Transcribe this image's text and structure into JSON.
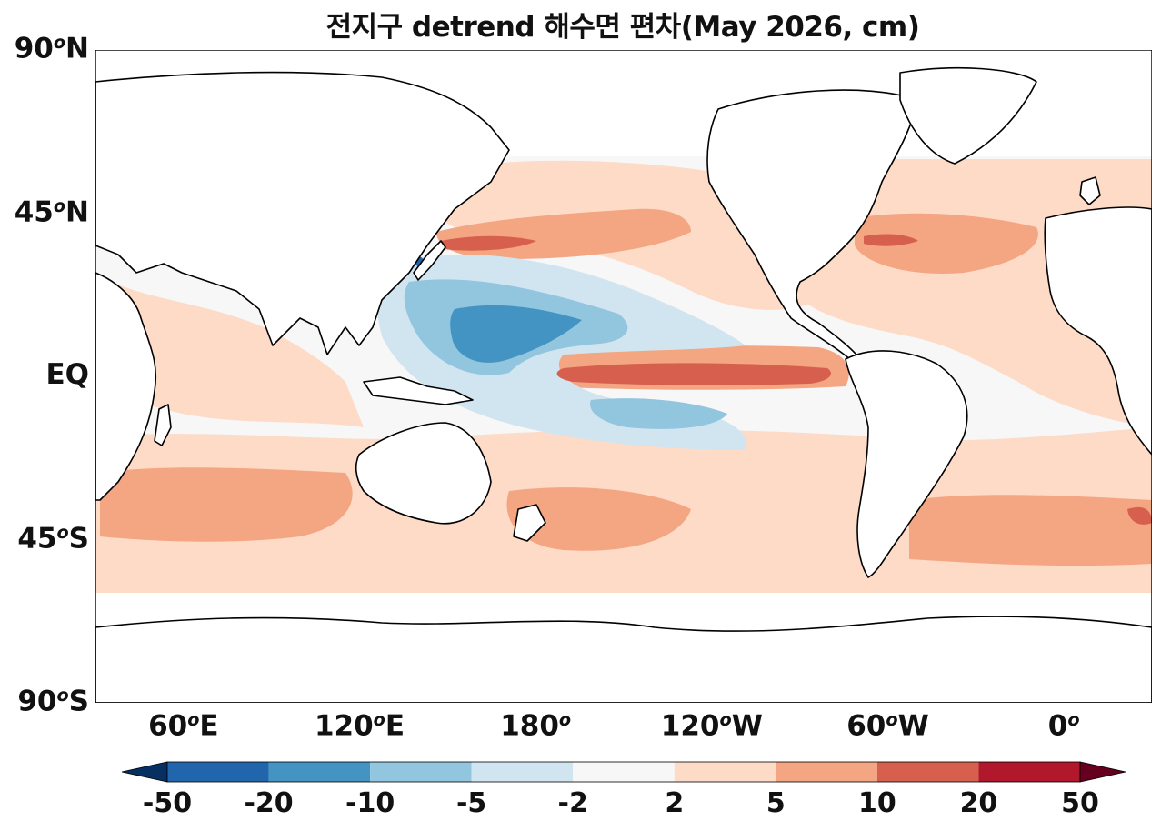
{
  "title": "전지구 detrend 해수면 편차(May 2026, cm)",
  "y_ticks": [
    {
      "deg": "90",
      "suffix": "N",
      "lat": 90
    },
    {
      "deg": "45",
      "suffix": "N",
      "lat": 45
    },
    {
      "deg": "",
      "suffix": "EQ",
      "lat": 0
    },
    {
      "deg": "45",
      "suffix": "S",
      "lat": -45
    },
    {
      "deg": "90",
      "suffix": "S",
      "lat": -90
    }
  ],
  "x_ticks": [
    {
      "deg": "60",
      "suffix": "E",
      "lon": 60
    },
    {
      "deg": "120",
      "suffix": "E",
      "lon": 120
    },
    {
      "deg": "180",
      "suffix": "",
      "lon": 180
    },
    {
      "deg": "120",
      "suffix": "W",
      "lon": 240
    },
    {
      "deg": "60",
      "suffix": "W",
      "lon": 300
    },
    {
      "deg": "0",
      "suffix": "",
      "lon": 360
    }
  ],
  "colorbar": {
    "levels": [
      "-50",
      "-20",
      "-10",
      "-5",
      "-2",
      "2",
      "5",
      "10",
      "20",
      "50"
    ],
    "colors": [
      "#2166ac",
      "#4393c3",
      "#92c5de",
      "#d1e5f0",
      "#f7f7f7",
      "#fddbc7",
      "#f4a582",
      "#d6604d",
      "#b2182b"
    ],
    "under_color": "#053061",
    "over_color": "#67001f"
  },
  "map_extent": {
    "lon_min": 30,
    "lon_max": 390,
    "lat_min": -90,
    "lat_max": 90
  }
}
